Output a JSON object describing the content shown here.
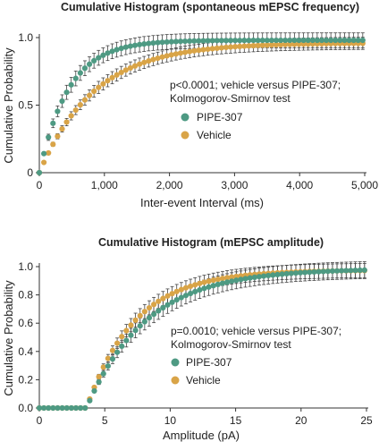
{
  "colors": {
    "pipe": "#4e9a83",
    "vehicle": "#d9a447",
    "error_bar": "#444444",
    "axis": "#333333"
  },
  "chart_data": [
    {
      "type": "scatter",
      "title": "Cumulative Histogram (spontaneous mEPSC frequency)",
      "xlabel": "Inter-event Interval (ms)",
      "ylabel": "Cumulative Probability",
      "xlim": [
        0,
        5000
      ],
      "ylim": [
        0,
        1.0
      ],
      "x_ticks": [
        0,
        1000,
        2000,
        3000,
        4000,
        5000
      ],
      "x_tick_labels": [
        "0",
        "1,000",
        "2,000",
        "3,000",
        "4,000",
        "5,000"
      ],
      "y_ticks": [
        0,
        0.5,
        1.0
      ],
      "y_tick_labels": [
        "0",
        "0.5",
        "1.0"
      ],
      "grid": false,
      "legend_position": "right",
      "annotation": [
        "p<0.0001; vehicle versus PIPE-307;",
        "Kolmogorov-Smirnov test"
      ],
      "series": [
        {
          "name": "PIPE-307",
          "model": "exp",
          "x_start": 0,
          "x_step": 70,
          "x_end": 5000,
          "tau": 450,
          "y_max": 0.98,
          "onset": 0,
          "error": 0.055
        },
        {
          "name": "Vehicle",
          "model": "exp",
          "x_start": 0,
          "x_step": 70,
          "x_end": 5000,
          "tau": 850,
          "y_max": 0.96,
          "onset": 0,
          "error": 0.045
        }
      ]
    },
    {
      "type": "scatter",
      "title": "Cumulative Histogram (mEPSC amplitude)",
      "xlabel": "Amplitude (pA)",
      "ylabel": "Cumulative Probability",
      "xlim": [
        0,
        25
      ],
      "ylim": [
        0,
        1.0
      ],
      "x_ticks": [
        0,
        5,
        10,
        15,
        20,
        25
      ],
      "x_tick_labels": [
        "0",
        "5",
        "10",
        "15",
        "20",
        "25"
      ],
      "y_ticks": [
        0,
        0.2,
        0.4,
        0.6,
        0.8,
        1.0
      ],
      "y_tick_labels": [
        "0.0",
        "0.2",
        "0.4",
        "0.6",
        "0.8",
        "1.0"
      ],
      "grid": false,
      "legend_position": "right",
      "annotation": [
        "p=0.0010; vehicle versus PIPE-307;",
        "Kolmogorov-Smirnov test"
      ],
      "series": [
        {
          "name": "PIPE-307",
          "model": "exp_onset",
          "x_start": 0,
          "x_step": 0.35,
          "x_end": 25,
          "tau": 4.6,
          "y_max": 0.985,
          "onset": 3.6,
          "error": 0.06
        },
        {
          "name": "Vehicle",
          "model": "exp_onset",
          "x_start": 0,
          "x_step": 0.35,
          "x_end": 25,
          "tau": 3.7,
          "y_max": 0.975,
          "onset": 3.6,
          "error": 0.05
        }
      ]
    }
  ]
}
